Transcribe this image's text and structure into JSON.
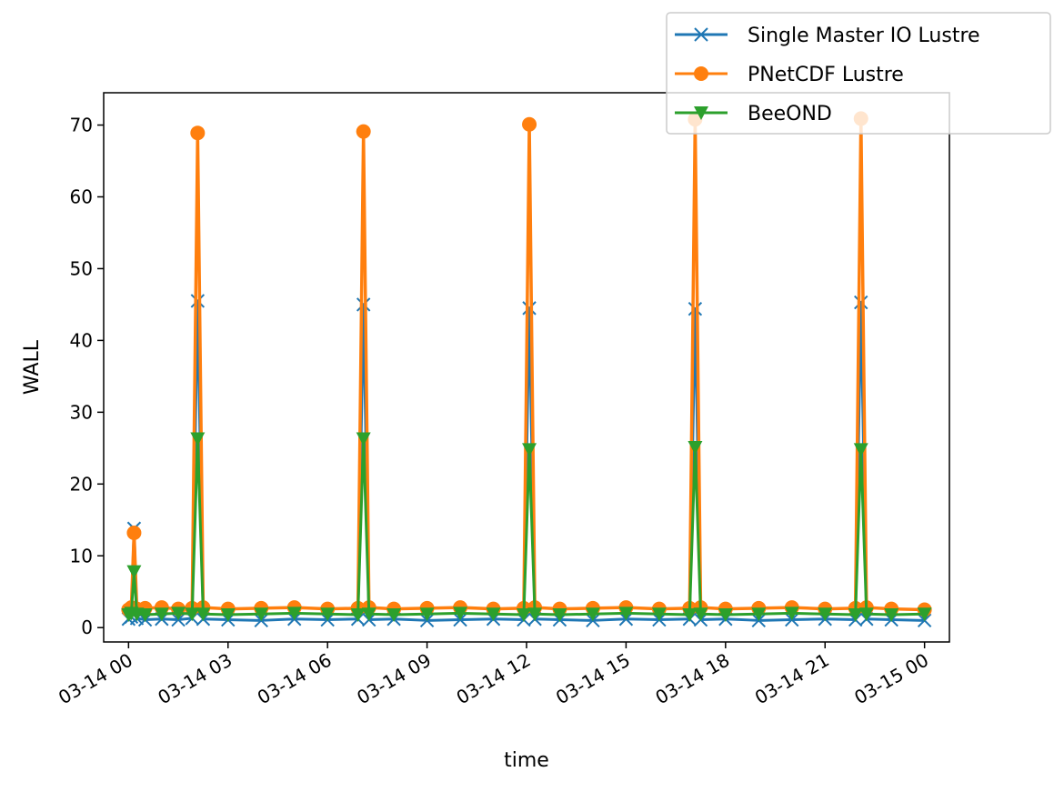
{
  "chart_data": {
    "type": "line",
    "title": "",
    "xlabel": "time",
    "ylabel": "WALL",
    "x_axis_kind": "datetime",
    "xlim": [
      "2024-03-13T23:15",
      "2024-03-15T00:45"
    ],
    "ylim": [
      -2,
      74.5
    ],
    "x_ticks": [
      {
        "value": "2024-03-14T00:00",
        "label": "03-14 00"
      },
      {
        "value": "2024-03-14T03:00",
        "label": "03-14 03"
      },
      {
        "value": "2024-03-14T06:00",
        "label": "03-14 06"
      },
      {
        "value": "2024-03-14T09:00",
        "label": "03-14 09"
      },
      {
        "value": "2024-03-14T12:00",
        "label": "03-14 12"
      },
      {
        "value": "2024-03-14T15:00",
        "label": "03-14 15"
      },
      {
        "value": "2024-03-14T18:00",
        "label": "03-14 18"
      },
      {
        "value": "2024-03-14T21:00",
        "label": "03-14 21"
      },
      {
        "value": "2024-03-15T00:00",
        "label": "03-15 00"
      }
    ],
    "y_ticks": [
      0,
      10,
      20,
      30,
      40,
      50,
      60,
      70
    ],
    "grid": false,
    "legend_position": "top-right",
    "series": [
      {
        "name": "Single Master IO Lustre",
        "color": "#1f77b4",
        "marker": "x",
        "x": [
          "2024-03-14T00:00",
          "2024-03-14T00:05",
          "2024-03-14T00:10",
          "2024-03-14T00:15",
          "2024-03-14T00:30",
          "2024-03-14T01:00",
          "2024-03-14T01:30",
          "2024-03-14T01:55",
          "2024-03-14T02:05",
          "2024-03-14T02:15",
          "2024-03-14T03:00",
          "2024-03-14T04:00",
          "2024-03-14T05:00",
          "2024-03-14T06:00",
          "2024-03-14T06:55",
          "2024-03-14T07:05",
          "2024-03-14T07:15",
          "2024-03-14T08:00",
          "2024-03-14T09:00",
          "2024-03-14T10:00",
          "2024-03-14T11:00",
          "2024-03-14T11:55",
          "2024-03-14T12:05",
          "2024-03-14T12:15",
          "2024-03-14T13:00",
          "2024-03-14T14:00",
          "2024-03-14T15:00",
          "2024-03-14T16:00",
          "2024-03-14T16:55",
          "2024-03-14T17:05",
          "2024-03-14T17:15",
          "2024-03-14T18:00",
          "2024-03-14T19:00",
          "2024-03-14T20:00",
          "2024-03-14T21:00",
          "2024-03-14T21:55",
          "2024-03-14T22:05",
          "2024-03-14T22:15",
          "2024-03-14T23:00",
          "2024-03-15T00:00"
        ],
        "values": [
          1.2,
          1.5,
          13.8,
          1.3,
          1.1,
          1.2,
          1.1,
          1.3,
          45.5,
          1.2,
          1.1,
          1.0,
          1.2,
          1.1,
          1.2,
          45.0,
          1.1,
          1.2,
          1.0,
          1.1,
          1.2,
          1.1,
          44.5,
          1.2,
          1.1,
          1.0,
          1.2,
          1.1,
          1.2,
          44.4,
          1.1,
          1.2,
          1.0,
          1.1,
          1.2,
          1.1,
          45.3,
          1.2,
          1.1,
          1.0
        ]
      },
      {
        "name": "PNetCDF Lustre",
        "color": "#ff7f0e",
        "marker": "circle",
        "x": [
          "2024-03-14T00:00",
          "2024-03-14T00:05",
          "2024-03-14T00:10",
          "2024-03-14T00:15",
          "2024-03-14T00:30",
          "2024-03-14T01:00",
          "2024-03-14T01:30",
          "2024-03-14T01:55",
          "2024-03-14T02:05",
          "2024-03-14T02:15",
          "2024-03-14T03:00",
          "2024-03-14T04:00",
          "2024-03-14T05:00",
          "2024-03-14T06:00",
          "2024-03-14T06:55",
          "2024-03-14T07:05",
          "2024-03-14T07:15",
          "2024-03-14T08:00",
          "2024-03-14T09:00",
          "2024-03-14T10:00",
          "2024-03-14T11:00",
          "2024-03-14T11:55",
          "2024-03-14T12:05",
          "2024-03-14T12:15",
          "2024-03-14T13:00",
          "2024-03-14T14:00",
          "2024-03-14T15:00",
          "2024-03-14T16:00",
          "2024-03-14T16:55",
          "2024-03-14T17:05",
          "2024-03-14T17:15",
          "2024-03-14T18:00",
          "2024-03-14T19:00",
          "2024-03-14T20:00",
          "2024-03-14T21:00",
          "2024-03-14T21:55",
          "2024-03-14T22:05",
          "2024-03-14T22:15",
          "2024-03-14T23:00",
          "2024-03-15T00:00"
        ],
        "values": [
          2.5,
          2.8,
          13.2,
          2.6,
          2.7,
          2.8,
          2.6,
          2.7,
          68.9,
          2.8,
          2.6,
          2.7,
          2.8,
          2.6,
          2.7,
          69.1,
          2.8,
          2.6,
          2.7,
          2.8,
          2.6,
          2.7,
          70.1,
          2.8,
          2.6,
          2.7,
          2.8,
          2.6,
          2.7,
          70.8,
          2.8,
          2.6,
          2.7,
          2.8,
          2.6,
          2.7,
          70.9,
          2.8,
          2.6,
          2.5
        ]
      },
      {
        "name": "BeeOND",
        "color": "#2ca02c",
        "marker": "triangle-down",
        "x": [
          "2024-03-14T00:00",
          "2024-03-14T00:05",
          "2024-03-14T00:10",
          "2024-03-14T00:15",
          "2024-03-14T00:30",
          "2024-03-14T01:00",
          "2024-03-14T01:30",
          "2024-03-14T01:55",
          "2024-03-14T02:05",
          "2024-03-14T02:15",
          "2024-03-14T03:00",
          "2024-03-14T04:00",
          "2024-03-14T05:00",
          "2024-03-14T06:00",
          "2024-03-14T06:55",
          "2024-03-14T07:05",
          "2024-03-14T07:15",
          "2024-03-14T08:00",
          "2024-03-14T09:00",
          "2024-03-14T10:00",
          "2024-03-14T11:00",
          "2024-03-14T11:55",
          "2024-03-14T12:05",
          "2024-03-14T12:15",
          "2024-03-14T13:00",
          "2024-03-14T14:00",
          "2024-03-14T15:00",
          "2024-03-14T16:00",
          "2024-03-14T16:55",
          "2024-03-14T17:05",
          "2024-03-14T17:15",
          "2024-03-14T18:00",
          "2024-03-14T19:00",
          "2024-03-14T20:00",
          "2024-03-14T21:00",
          "2024-03-14T21:55",
          "2024-03-14T22:05",
          "2024-03-14T22:15",
          "2024-03-14T23:00",
          "2024-03-15T00:00"
        ],
        "values": [
          1.8,
          2.0,
          7.8,
          1.9,
          1.8,
          1.9,
          2.0,
          1.9,
          26.3,
          1.9,
          1.8,
          1.9,
          2.0,
          1.9,
          1.8,
          26.3,
          1.9,
          1.8,
          1.9,
          2.0,
          1.9,
          1.8,
          24.8,
          1.9,
          1.8,
          1.9,
          2.0,
          1.9,
          1.8,
          25.1,
          1.9,
          1.8,
          1.9,
          2.0,
          1.9,
          1.8,
          24.8,
          1.9,
          1.8,
          1.9
        ]
      }
    ]
  }
}
